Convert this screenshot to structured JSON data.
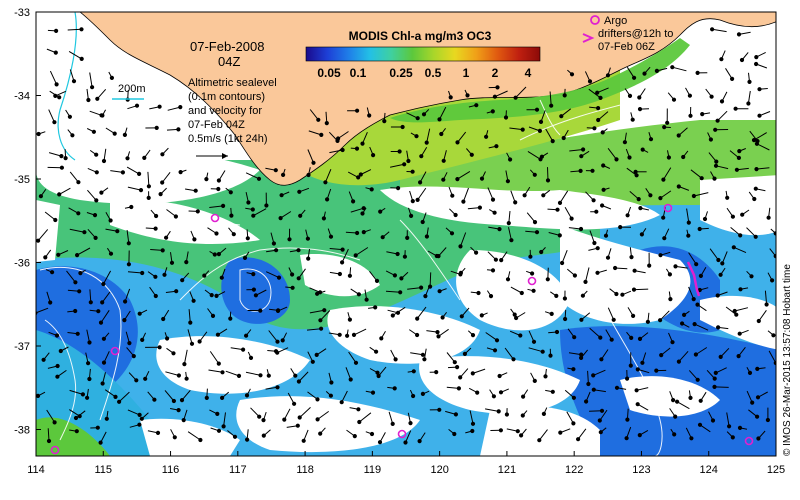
{
  "title": {
    "date": "07-Feb-2008",
    "time": "04Z"
  },
  "scale_label": "200m",
  "info_lines": [
    "Altimetric sealevel",
    "(0.1m contours)",
    "and velocity for",
    "07-Feb 04Z",
    "0.5m/s (1kt 24h)"
  ],
  "colorbar": {
    "title": "MODIS Chl-a mg/m3 OC3",
    "tick_labels": [
      "0.05",
      "0.1",
      "0.25",
      "0.5",
      "1",
      "2",
      "4"
    ],
    "colors": [
      "#1a0a8c",
      "#1d3fd6",
      "#1f7ee8",
      "#23c0e6",
      "#3fd0a0",
      "#5cc83c",
      "#a8d62a",
      "#e8d820",
      "#f0a018",
      "#e05a10",
      "#c02010",
      "#8c0a08"
    ]
  },
  "argo_legend": {
    "lines": [
      "Argo",
      "drifters@12h to",
      "07-Feb 06Z"
    ],
    "color": "#e020d0"
  },
  "credit": "© IMOS 26-Mar-2015 13:57:08 Hobart time",
  "axes": {
    "x_ticks": [
      "114",
      "115",
      "116",
      "117",
      "118",
      "119",
      "120",
      "121",
      "122",
      "123",
      "124",
      "125"
    ],
    "y_ticks": [
      "-33",
      "-34",
      "-35",
      "-36",
      "-37",
      "-38"
    ]
  },
  "colors": {
    "land": "#fac89a",
    "coast": "#000000",
    "argo": "#e020d0",
    "contour": "#ffffff"
  }
}
